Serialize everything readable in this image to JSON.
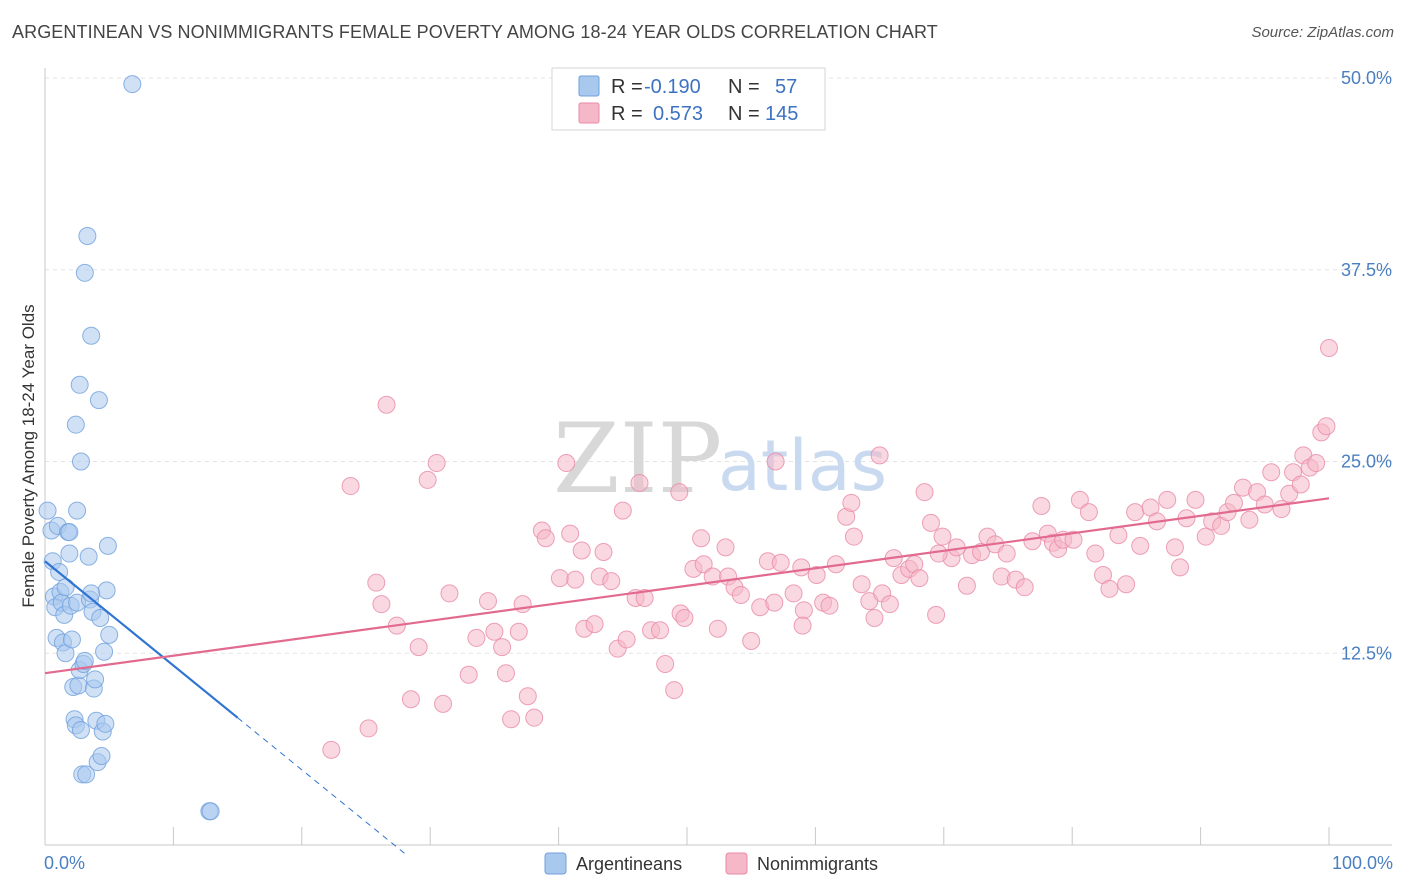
{
  "title": "ARGENTINEAN VS NONIMMIGRANTS FEMALE POVERTY AMONG 18-24 YEAR OLDS CORRELATION CHART",
  "source": "Source: ZipAtlas.com",
  "watermark": {
    "zip": "ZIP",
    "atlas": "atlas"
  },
  "legend": {
    "rows": [
      {
        "r_label": "R =",
        "r_value": "-0.190",
        "n_label": "N =",
        "n_value": "57",
        "color": "#a9c8ee"
      },
      {
        "r_label": "R =",
        "r_value": "0.573",
        "n_label": "N =",
        "n_value": "145",
        "color": "#f5b8c9"
      }
    ]
  },
  "bottom_legend": [
    {
      "label": "Argentineans",
      "color": "#a9c8ee"
    },
    {
      "label": "Nonimmigrants",
      "color": "#f5b8c9"
    }
  ],
  "chart_data": {
    "type": "scatter",
    "title": "ARGENTINEAN VS NONIMMIGRANTS FEMALE POVERTY AMONG 18-24 YEAR OLDS CORRELATION CHART",
    "xlabel": "",
    "ylabel": "Female Poverty Among 18-24 Year Olds",
    "xlim": [
      0,
      100
    ],
    "ylim": [
      0,
      50
    ],
    "x_tick_labels": [
      "0.0%",
      "100.0%"
    ],
    "y_ticks": [
      12.5,
      25.0,
      37.5,
      50.0
    ],
    "y_tick_labels": [
      "12.5%",
      "25.0%",
      "37.5%",
      "50.0%"
    ],
    "grid": true,
    "legend_position": "top-center",
    "series": [
      {
        "name": "Argentineans",
        "color": "#a9c8ee",
        "edge": "#6fa0dc",
        "trend": {
          "x0": 0,
          "y0": 18.5,
          "x1": 15,
          "y1": 8.3,
          "dash_to_x": 28,
          "color": "#2f74d0"
        },
        "points": [
          [
            0.2,
            21.8
          ],
          [
            0.5,
            20.5
          ],
          [
            0.6,
            18.5
          ],
          [
            0.7,
            16.2
          ],
          [
            0.8,
            15.5
          ],
          [
            0.9,
            13.5
          ],
          [
            1.0,
            20.8
          ],
          [
            1.1,
            17.8
          ],
          [
            1.2,
            16.5
          ],
          [
            1.3,
            15.8
          ],
          [
            1.4,
            13.2
          ],
          [
            1.5,
            15.0
          ],
          [
            1.6,
            12.5
          ],
          [
            1.8,
            20.4
          ],
          [
            1.9,
            19.0
          ],
          [
            2.0,
            15.6
          ],
          [
            2.1,
            13.4
          ],
          [
            2.2,
            10.3
          ],
          [
            2.3,
            8.2
          ],
          [
            2.4,
            7.8
          ],
          [
            2.5,
            15.8
          ],
          [
            2.6,
            10.4
          ],
          [
            2.7,
            11.4
          ],
          [
            2.8,
            7.5
          ],
          [
            2.9,
            4.6
          ],
          [
            3.0,
            11.8
          ],
          [
            3.1,
            12.0
          ],
          [
            3.2,
            4.6
          ],
          [
            3.3,
            39.7
          ],
          [
            3.4,
            18.8
          ],
          [
            3.5,
            16.0
          ],
          [
            3.6,
            33.2
          ],
          [
            3.7,
            15.2
          ],
          [
            3.8,
            10.2
          ],
          [
            3.9,
            10.8
          ],
          [
            4.0,
            8.1
          ],
          [
            4.1,
            5.4
          ],
          [
            4.2,
            29.0
          ],
          [
            4.3,
            14.8
          ],
          [
            4.4,
            5.8
          ],
          [
            4.5,
            7.4
          ],
          [
            4.6,
            12.6
          ],
          [
            4.7,
            7.9
          ],
          [
            4.8,
            16.6
          ],
          [
            4.9,
            19.5
          ],
          [
            5.0,
            13.7
          ],
          [
            2.4,
            27.4
          ],
          [
            2.7,
            30.0
          ],
          [
            3.1,
            37.3
          ],
          [
            3.6,
            16.4
          ],
          [
            1.6,
            16.8
          ],
          [
            2.8,
            25.0
          ],
          [
            2.5,
            21.8
          ],
          [
            1.9,
            20.4
          ],
          [
            6.8,
            49.6
          ],
          [
            12.8,
            2.2
          ],
          [
            12.9,
            2.2
          ]
        ]
      },
      {
        "name": "Nonimmigrants",
        "color": "#f5b8c9",
        "edge": "#e98aa6",
        "trend": {
          "x0": 0,
          "y0": 11.2,
          "x1": 100,
          "y1": 22.6,
          "color": "#e26a8f"
        },
        "points": [
          [
            22.3,
            6.2
          ],
          [
            23.8,
            23.4
          ],
          [
            25.2,
            7.6
          ],
          [
            25.8,
            17.1
          ],
          [
            26.2,
            15.7
          ],
          [
            26.6,
            28.7
          ],
          [
            27.4,
            14.3
          ],
          [
            28.5,
            9.5
          ],
          [
            29.1,
            12.9
          ],
          [
            29.8,
            23.8
          ],
          [
            30.5,
            24.9
          ],
          [
            31.0,
            9.2
          ],
          [
            31.5,
            16.4
          ],
          [
            33.0,
            11.1
          ],
          [
            33.6,
            13.5
          ],
          [
            34.5,
            15.9
          ],
          [
            35.0,
            13.9
          ],
          [
            35.6,
            12.9
          ],
          [
            35.9,
            11.2
          ],
          [
            36.3,
            8.2
          ],
          [
            36.9,
            13.9
          ],
          [
            37.2,
            15.7
          ],
          [
            37.6,
            9.7
          ],
          [
            38.1,
            8.3
          ],
          [
            38.7,
            20.5
          ],
          [
            39.0,
            20.0
          ],
          [
            40.1,
            17.4
          ],
          [
            40.6,
            24.9
          ],
          [
            40.9,
            20.3
          ],
          [
            41.3,
            17.3
          ],
          [
            41.8,
            19.2
          ],
          [
            42.0,
            14.1
          ],
          [
            42.8,
            14.4
          ],
          [
            43.2,
            17.5
          ],
          [
            43.5,
            19.1
          ],
          [
            44.1,
            17.2
          ],
          [
            44.6,
            12.8
          ],
          [
            45.0,
            21.8
          ],
          [
            45.3,
            13.4
          ],
          [
            46.0,
            16.1
          ],
          [
            46.3,
            23.6
          ],
          [
            46.7,
            16.1
          ],
          [
            47.2,
            14.0
          ],
          [
            47.9,
            14.0
          ],
          [
            48.3,
            11.8
          ],
          [
            49.0,
            10.1
          ],
          [
            49.5,
            15.1
          ],
          [
            49.8,
            14.8
          ],
          [
            50.5,
            18.0
          ],
          [
            51.1,
            20.0
          ],
          [
            51.3,
            18.3
          ],
          [
            52.0,
            17.5
          ],
          [
            52.4,
            14.1
          ],
          [
            53.0,
            19.4
          ],
          [
            53.2,
            17.5
          ],
          [
            53.7,
            16.8
          ],
          [
            54.2,
            16.3
          ],
          [
            55.0,
            13.3
          ],
          [
            55.7,
            15.5
          ],
          [
            56.3,
            18.5
          ],
          [
            56.8,
            15.8
          ],
          [
            57.3,
            18.4
          ],
          [
            58.3,
            16.4
          ],
          [
            58.9,
            18.1
          ],
          [
            59.1,
            15.3
          ],
          [
            60.1,
            17.6
          ],
          [
            60.6,
            15.8
          ],
          [
            61.1,
            15.6
          ],
          [
            61.6,
            18.3
          ],
          [
            62.4,
            21.4
          ],
          [
            62.8,
            22.3
          ],
          [
            63.0,
            20.1
          ],
          [
            63.6,
            17.0
          ],
          [
            64.2,
            15.9
          ],
          [
            64.6,
            14.8
          ],
          [
            65.2,
            16.4
          ],
          [
            65.8,
            15.7
          ],
          [
            66.1,
            18.7
          ],
          [
            66.7,
            17.6
          ],
          [
            67.3,
            18.0
          ],
          [
            67.7,
            18.3
          ],
          [
            68.1,
            17.4
          ],
          [
            68.5,
            23.0
          ],
          [
            69.0,
            21.0
          ],
          [
            69.4,
            15.0
          ],
          [
            69.9,
            20.1
          ],
          [
            70.6,
            18.7
          ],
          [
            71.0,
            19.4
          ],
          [
            71.8,
            16.9
          ],
          [
            72.2,
            18.9
          ],
          [
            72.9,
            19.1
          ],
          [
            73.4,
            20.1
          ],
          [
            74.0,
            19.6
          ],
          [
            74.5,
            17.5
          ],
          [
            74.9,
            19.0
          ],
          [
            75.6,
            17.3
          ],
          [
            76.3,
            16.8
          ],
          [
            76.9,
            19.8
          ],
          [
            77.6,
            22.1
          ],
          [
            78.1,
            20.3
          ],
          [
            78.5,
            19.7
          ],
          [
            78.9,
            19.3
          ],
          [
            79.3,
            19.9
          ],
          [
            80.1,
            19.9
          ],
          [
            80.6,
            22.5
          ],
          [
            81.3,
            21.7
          ],
          [
            81.8,
            19.0
          ],
          [
            82.4,
            17.6
          ],
          [
            82.9,
            16.7
          ],
          [
            83.6,
            20.2
          ],
          [
            84.2,
            17.0
          ],
          [
            84.9,
            21.7
          ],
          [
            85.3,
            19.5
          ],
          [
            86.1,
            22.0
          ],
          [
            86.6,
            21.1
          ],
          [
            87.4,
            22.5
          ],
          [
            88.0,
            19.4
          ],
          [
            88.4,
            18.1
          ],
          [
            88.9,
            21.3
          ],
          [
            89.6,
            22.5
          ],
          [
            90.4,
            20.1
          ],
          [
            90.9,
            21.1
          ],
          [
            91.6,
            20.8
          ],
          [
            92.1,
            21.7
          ],
          [
            92.6,
            22.3
          ],
          [
            93.3,
            23.3
          ],
          [
            93.8,
            21.2
          ],
          [
            94.4,
            23.0
          ],
          [
            95.0,
            22.2
          ],
          [
            95.5,
            24.3
          ],
          [
            96.3,
            21.9
          ],
          [
            96.9,
            22.9
          ],
          [
            97.2,
            24.3
          ],
          [
            97.8,
            23.5
          ],
          [
            98.0,
            25.4
          ],
          [
            98.5,
            24.6
          ],
          [
            99.0,
            24.9
          ],
          [
            99.4,
            26.9
          ],
          [
            99.8,
            27.3
          ],
          [
            100.0,
            32.4
          ],
          [
            49.4,
            23.0
          ],
          [
            56.9,
            25.0
          ],
          [
            65.0,
            25.4
          ],
          [
            69.6,
            19.0
          ],
          [
            59.0,
            14.3
          ]
        ]
      }
    ]
  }
}
